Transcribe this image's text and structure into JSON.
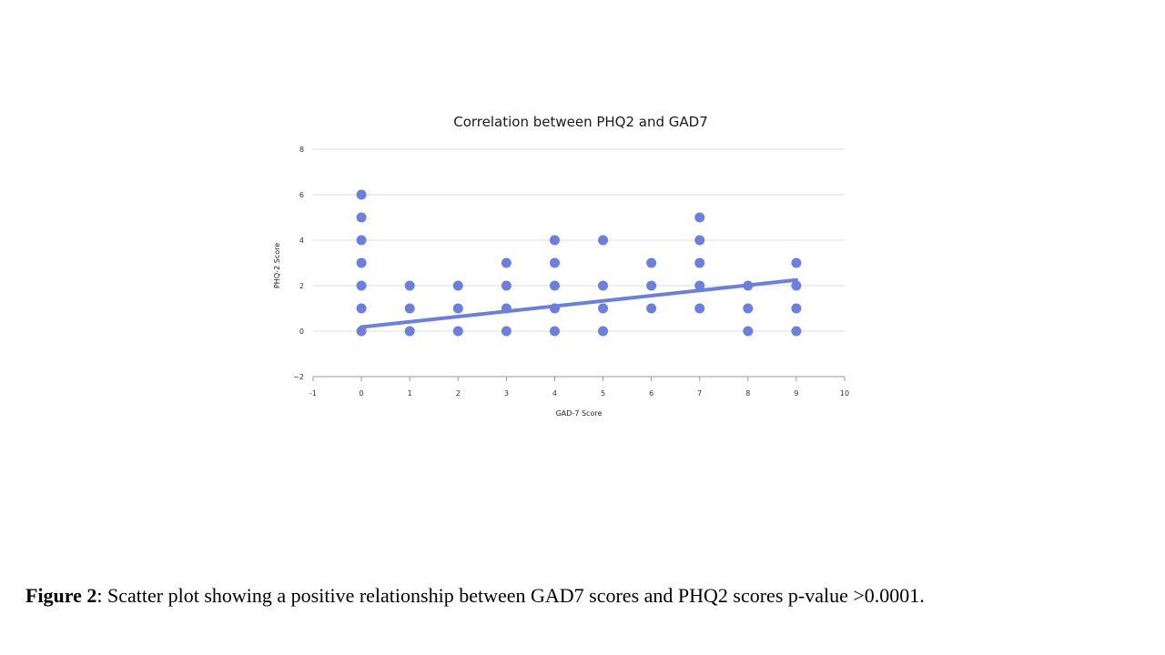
{
  "chart_data": {
    "type": "scatter",
    "title": "Correlation between PHQ2 and GAD7",
    "xlabel": "GAD-7 Score",
    "ylabel": "PHQ-2 Score",
    "xlim": [
      -1,
      10
    ],
    "ylim": [
      -2,
      8
    ],
    "x_ticks": [
      -1,
      0,
      1,
      2,
      3,
      4,
      5,
      6,
      7,
      8,
      9,
      10
    ],
    "x_tick_labels": [
      "-1",
      "0",
      "1",
      "2",
      "3",
      "4",
      "5",
      "6",
      "7",
      "8",
      "9",
      "10"
    ],
    "y_ticks": [
      -2,
      0,
      2,
      4,
      6,
      8
    ],
    "y_tick_labels": [
      "−2",
      "0",
      "2",
      "4",
      "6",
      "8"
    ],
    "grid": true,
    "points": [
      {
        "x": 0,
        "y": 0
      },
      {
        "x": 0,
        "y": 1
      },
      {
        "x": 0,
        "y": 2
      },
      {
        "x": 0,
        "y": 3
      },
      {
        "x": 0,
        "y": 4
      },
      {
        "x": 0,
        "y": 5
      },
      {
        "x": 0,
        "y": 6
      },
      {
        "x": 1,
        "y": 0
      },
      {
        "x": 1,
        "y": 1
      },
      {
        "x": 1,
        "y": 2
      },
      {
        "x": 2,
        "y": 0
      },
      {
        "x": 2,
        "y": 1
      },
      {
        "x": 2,
        "y": 2
      },
      {
        "x": 3,
        "y": 0
      },
      {
        "x": 3,
        "y": 1
      },
      {
        "x": 3,
        "y": 2
      },
      {
        "x": 3,
        "y": 3
      },
      {
        "x": 4,
        "y": 0
      },
      {
        "x": 4,
        "y": 1
      },
      {
        "x": 4,
        "y": 2
      },
      {
        "x": 4,
        "y": 3
      },
      {
        "x": 4,
        "y": 4
      },
      {
        "x": 5,
        "y": 0
      },
      {
        "x": 5,
        "y": 1
      },
      {
        "x": 5,
        "y": 2
      },
      {
        "x": 5,
        "y": 4
      },
      {
        "x": 6,
        "y": 1
      },
      {
        "x": 6,
        "y": 2
      },
      {
        "x": 6,
        "y": 3
      },
      {
        "x": 7,
        "y": 1
      },
      {
        "x": 7,
        "y": 2
      },
      {
        "x": 7,
        "y": 3
      },
      {
        "x": 7,
        "y": 4
      },
      {
        "x": 7,
        "y": 5
      },
      {
        "x": 8,
        "y": 0
      },
      {
        "x": 8,
        "y": 1
      },
      {
        "x": 8,
        "y": 2
      },
      {
        "x": 9,
        "y": 0
      },
      {
        "x": 9,
        "y": 1
      },
      {
        "x": 9,
        "y": 2
      },
      {
        "x": 9,
        "y": 3
      }
    ],
    "trendline": {
      "x": [
        0,
        9
      ],
      "y": [
        0.18,
        2.25
      ]
    },
    "point_color": "#6b7fdd",
    "line_color": "#6b7fdd",
    "grid_color": "#dcdcdc"
  },
  "caption": {
    "label": "Figure 2",
    "text": ": Scatter plot showing a positive relationship between GAD7 scores and PHQ2 scores p-value >0.0001."
  }
}
